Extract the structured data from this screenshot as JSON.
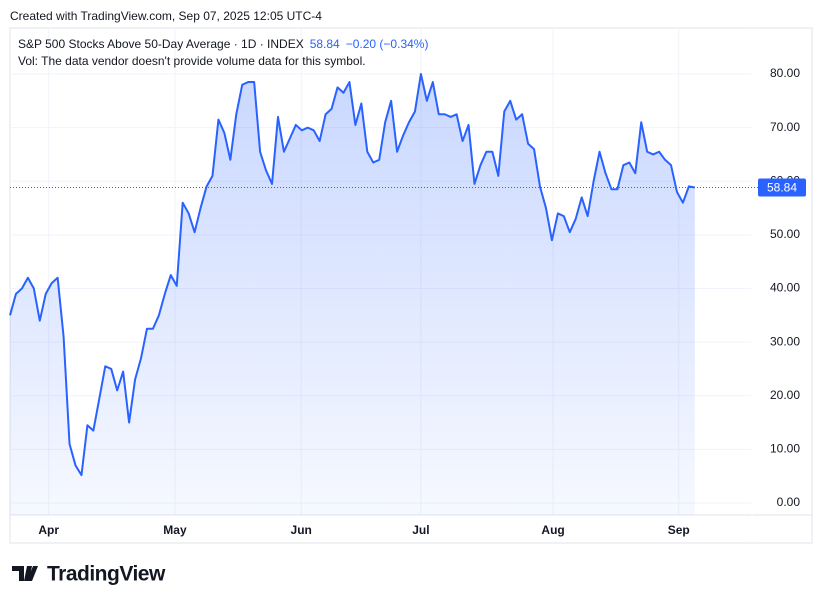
{
  "header": "Created with TradingView.com, Sep 07, 2025 12:05 UTC-4",
  "brand": "TradingView",
  "chart_data": {
    "type": "area",
    "title": "S&P 500 Stocks Above 50-Day Average · 1D · INDEX",
    "change_text": "−0.20 (−0.34%)",
    "subtitle": "Vol: The data vendor doesn't provide volume data for this symbol.",
    "color": "#2962ff",
    "values": [
      35,
      39,
      40,
      42,
      40,
      34,
      39,
      41,
      42,
      31,
      11,
      7,
      5.2,
      14.5,
      13.5,
      19.5,
      25.5,
      25,
      21,
      24.5,
      15,
      23,
      27,
      32.5,
      32.5,
      35,
      39,
      42.5,
      40.5,
      56,
      54,
      50.5,
      55,
      59,
      61,
      71.5,
      69,
      64,
      72.5,
      78,
      78.5,
      78.5,
      65.5,
      62,
      59.5,
      72,
      65.5,
      68,
      70.5,
      69.5,
      70,
      69.5,
      67.5,
      72.5,
      73.5,
      77.5,
      76.5,
      78.5,
      70.5,
      74.5,
      65.5,
      63.5,
      64,
      71,
      75,
      65.5,
      68.5,
      71,
      73,
      80,
      75,
      78.5,
      72.5,
      72.5,
      72,
      72.5,
      67.5,
      70.5,
      59.5,
      63,
      65.5,
      65.5,
      61,
      73,
      75,
      71.5,
      72.5,
      67,
      66,
      59,
      55,
      49,
      54,
      53.5,
      50.5,
      53,
      57,
      53.5,
      60,
      65.5,
      61.5,
      58.5,
      58.5,
      63,
      63.5,
      61.5,
      71,
      65.5,
      65,
      65.5,
      64,
      63,
      58,
      56,
      59.04,
      58.84
    ],
    "xlim": [
      0,
      124.6
    ],
    "xticks": [
      {
        "value": 6.5,
        "label": "Apr"
      },
      {
        "value": 27.7,
        "label": "May"
      },
      {
        "value": 48.9,
        "label": "Jun"
      },
      {
        "value": 69.0,
        "label": "Jul"
      },
      {
        "value": 91.2,
        "label": "Aug"
      },
      {
        "value": 112.3,
        "label": "Sep"
      }
    ],
    "ylim": [
      -2.24,
      88.58
    ],
    "yticks": [
      {
        "value": 0,
        "label": "0.00"
      },
      {
        "value": 10,
        "label": "10.00"
      },
      {
        "value": 20,
        "label": "20.00"
      },
      {
        "value": 30,
        "label": "30.00"
      },
      {
        "value": 40,
        "label": "40.00"
      },
      {
        "value": 50,
        "label": "50.00"
      },
      {
        "value": 60,
        "label": "60.00"
      },
      {
        "value": 70,
        "label": "70.00"
      },
      {
        "value": 80,
        "label": "80.00"
      }
    ],
    "grid": true
  }
}
